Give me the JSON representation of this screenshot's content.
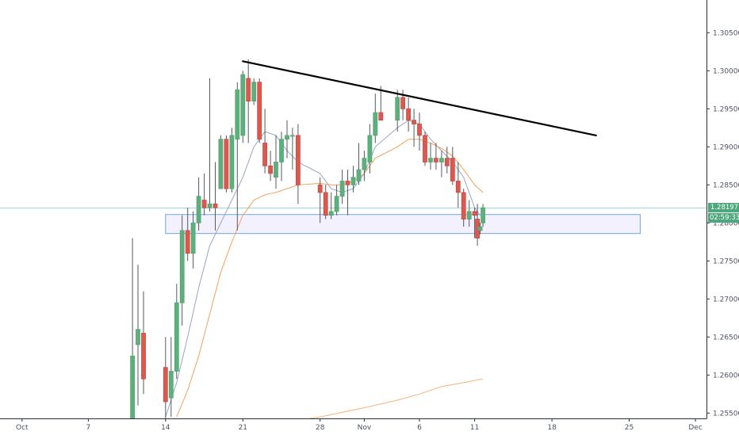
{
  "colors": {
    "up": "#53a773",
    "up_body": "#5fae7d",
    "down": "#d0473f",
    "down_body": "#d85a50",
    "wick": "#555a5f",
    "ma_fast": "#9aa4c4",
    "ma_slow": "#f1a15f",
    "ma_long": "#f6b27a",
    "zone_fill": "#f3f1fd",
    "zone_border": "#72a6dd",
    "price_line": "#9fd6c6",
    "badge_bg": "#4da77c",
    "trendline": "#000000",
    "axis_text": "#4c525e",
    "axis_line": "#2a2e39"
  },
  "price_badge": {
    "value": "1.28197",
    "countdown": "02:59:33"
  },
  "chart_data": {
    "type": "candlestick",
    "title": "",
    "xlabel": "",
    "ylabel": "",
    "x_axis": {
      "type": "date",
      "range": [
        "Sep 29",
        "Dec 2"
      ]
    },
    "y_axis": {
      "position": "right",
      "ylim": [
        1.2543,
        1.3093
      ]
    },
    "x_ticks": [
      {
        "label": "Oct",
        "date": "Oct 1"
      },
      {
        "label": "7",
        "date": "Oct 7"
      },
      {
        "label": "14",
        "date": "Oct 14"
      },
      {
        "label": "21",
        "date": "Oct 21"
      },
      {
        "label": "28",
        "date": "Oct 28"
      },
      {
        "label": "Nov",
        "date": "Nov 1"
      },
      {
        "label": "6",
        "date": "Nov 6"
      },
      {
        "label": "11",
        "date": "Nov 11"
      },
      {
        "label": "18",
        "date": "Nov 18"
      },
      {
        "label": "25",
        "date": "Nov 25"
      },
      {
        "label": "Dec",
        "date": "Dec 1"
      }
    ],
    "y_ticks": [
      "1.30500",
      "1.30000",
      "1.29500",
      "1.29000",
      "1.28500",
      "1.28000",
      "1.27500",
      "1.27000",
      "1.26500",
      "1.26000",
      "1.25500"
    ],
    "grid": false,
    "current_price": 1.28197,
    "candles": [
      {
        "date": "Oct 11 00:00",
        "open": 1.2515,
        "high": 1.278,
        "low": 1.25,
        "close": 1.2625
      },
      {
        "date": "Oct 11 12:00",
        "open": 1.264,
        "high": 1.2745,
        "low": 1.256,
        "close": 1.266
      },
      {
        "date": "Oct 12 00:00",
        "open": 1.2655,
        "high": 1.271,
        "low": 1.2575,
        "close": 1.2595
      },
      {
        "date": "Oct 14 00:00",
        "open": 1.261,
        "high": 1.265,
        "low": 1.2535,
        "close": 1.2565
      },
      {
        "date": "Oct 14 12:00",
        "open": 1.257,
        "high": 1.265,
        "low": 1.2545,
        "close": 1.2605
      },
      {
        "date": "Oct 15 00:00",
        "open": 1.2605,
        "high": 1.272,
        "low": 1.2595,
        "close": 1.2695
      },
      {
        "date": "Oct 15 12:00",
        "open": 1.2695,
        "high": 1.281,
        "low": 1.2665,
        "close": 1.279
      },
      {
        "date": "Oct 16 00:00",
        "open": 1.279,
        "high": 1.282,
        "low": 1.275,
        "close": 1.276
      },
      {
        "date": "Oct 16 12:00",
        "open": 1.276,
        "high": 1.2815,
        "low": 1.274,
        "close": 1.28
      },
      {
        "date": "Oct 17 00:00",
        "open": 1.28,
        "high": 1.286,
        "low": 1.279,
        "close": 1.2835
      },
      {
        "date": "Oct 17 12:00",
        "open": 1.283,
        "high": 1.2865,
        "low": 1.281,
        "close": 1.282
      },
      {
        "date": "Oct 18 00:00",
        "open": 1.282,
        "high": 1.299,
        "low": 1.2815,
        "close": 1.2825
      },
      {
        "date": "Oct 18 12:00",
        "open": 1.2825,
        "high": 1.288,
        "low": 1.279,
        "close": 1.282
      },
      {
        "date": "Oct 19 00:00",
        "open": 1.2845,
        "high": 1.2915,
        "low": 1.2845,
        "close": 1.291
      },
      {
        "date": "Oct 19 12:00",
        "open": 1.291,
        "high": 1.2915,
        "low": 1.284,
        "close": 1.2845
      },
      {
        "date": "Oct 20 00:00",
        "open": 1.2845,
        "high": 1.2925,
        "low": 1.284,
        "close": 1.2915
      },
      {
        "date": "Oct 20 12:00",
        "open": 1.291,
        "high": 1.2985,
        "low": 1.279,
        "close": 1.2975
      },
      {
        "date": "Oct 21 00:00",
        "open": 1.2915,
        "high": 1.3,
        "low": 1.2905,
        "close": 1.2995
      },
      {
        "date": "Oct 21 12:00",
        "open": 1.299,
        "high": 1.3015,
        "low": 1.2905,
        "close": 1.296
      },
      {
        "date": "Oct 22 00:00",
        "open": 1.296,
        "high": 1.299,
        "low": 1.2955,
        "close": 1.2985
      },
      {
        "date": "Oct 22 12:00",
        "open": 1.2985,
        "high": 1.299,
        "low": 1.2905,
        "close": 1.291
      },
      {
        "date": "Oct 23 00:00",
        "open": 1.2905,
        "high": 1.295,
        "low": 1.2865,
        "close": 1.2875
      },
      {
        "date": "Oct 23 12:00",
        "open": 1.2875,
        "high": 1.2895,
        "low": 1.2855,
        "close": 1.2865
      },
      {
        "date": "Oct 24 00:00",
        "open": 1.286,
        "high": 1.2915,
        "low": 1.2845,
        "close": 1.288
      },
      {
        "date": "Oct 24 12:00",
        "open": 1.288,
        "high": 1.292,
        "low": 1.2855,
        "close": 1.291
      },
      {
        "date": "Oct 25 00:00",
        "open": 1.291,
        "high": 1.2935,
        "low": 1.2885,
        "close": 1.2915
      },
      {
        "date": "Oct 25 12:00",
        "open": 1.2915,
        "high": 1.2925,
        "low": 1.287,
        "close": 1.2915
      },
      {
        "date": "Oct 26 00:00",
        "open": 1.2915,
        "high": 1.293,
        "low": 1.2825,
        "close": 1.285
      },
      {
        "date": "Oct 28 00:00",
        "open": 1.285,
        "high": 1.286,
        "low": 1.28,
        "close": 1.284
      },
      {
        "date": "Oct 28 12:00",
        "open": 1.284,
        "high": 1.285,
        "low": 1.2805,
        "close": 1.281
      },
      {
        "date": "Oct 29 00:00",
        "open": 1.281,
        "high": 1.284,
        "low": 1.2805,
        "close": 1.2815
      },
      {
        "date": "Oct 29 12:00",
        "open": 1.2815,
        "high": 1.285,
        "low": 1.281,
        "close": 1.2835
      },
      {
        "date": "Oct 30 00:00",
        "open": 1.2835,
        "high": 1.287,
        "low": 1.2825,
        "close": 1.2855
      },
      {
        "date": "Oct 30 12:00",
        "open": 1.2855,
        "high": 1.287,
        "low": 1.281,
        "close": 1.285
      },
      {
        "date": "Oct 31 00:00",
        "open": 1.285,
        "high": 1.2875,
        "low": 1.284,
        "close": 1.286
      },
      {
        "date": "Oct 31 12:00",
        "open": 1.2855,
        "high": 1.2905,
        "low": 1.285,
        "close": 1.287
      },
      {
        "date": "Nov 1 00:00",
        "open": 1.287,
        "high": 1.2895,
        "low": 1.2855,
        "close": 1.2885
      },
      {
        "date": "Nov 1 12:00",
        "open": 1.288,
        "high": 1.293,
        "low": 1.2865,
        "close": 1.2915
      },
      {
        "date": "Nov 2 00:00",
        "open": 1.2915,
        "high": 1.297,
        "low": 1.2905,
        "close": 1.2945
      },
      {
        "date": "Nov 2 12:00",
        "open": 1.2945,
        "high": 1.298,
        "low": 1.2935,
        "close": 1.2935
      },
      {
        "date": "Nov 4 00:00",
        "open": 1.2935,
        "high": 1.2975,
        "low": 1.292,
        "close": 1.2965
      },
      {
        "date": "Nov 4 12:00",
        "open": 1.2965,
        "high": 1.2975,
        "low": 1.2935,
        "close": 1.295
      },
      {
        "date": "Nov 5 00:00",
        "open": 1.295,
        "high": 1.2965,
        "low": 1.292,
        "close": 1.2935
      },
      {
        "date": "Nov 5 12:00",
        "open": 1.2935,
        "high": 1.295,
        "low": 1.29,
        "close": 1.293
      },
      {
        "date": "Nov 6 00:00",
        "open": 1.293,
        "high": 1.2945,
        "low": 1.2895,
        "close": 1.2915
      },
      {
        "date": "Nov 6 12:00",
        "open": 1.2915,
        "high": 1.292,
        "low": 1.2875,
        "close": 1.288
      },
      {
        "date": "Nov 7 00:00",
        "open": 1.288,
        "high": 1.2905,
        "low": 1.287,
        "close": 1.2885
      },
      {
        "date": "Nov 7 12:00",
        "open": 1.2885,
        "high": 1.2905,
        "low": 1.287,
        "close": 1.288
      },
      {
        "date": "Nov 8 00:00",
        "open": 1.288,
        "high": 1.2895,
        "low": 1.286,
        "close": 1.2885
      },
      {
        "date": "Nov 8 12:00",
        "open": 1.2885,
        "high": 1.29,
        "low": 1.2865,
        "close": 1.2875
      },
      {
        "date": "Nov 9 00:00",
        "open": 1.2885,
        "high": 1.29,
        "low": 1.285,
        "close": 1.2855
      },
      {
        "date": "Nov 9 12:00",
        "open": 1.2855,
        "high": 1.288,
        "low": 1.282,
        "close": 1.284
      },
      {
        "date": "Nov 10 00:00",
        "open": 1.284,
        "high": 1.2845,
        "low": 1.2795,
        "close": 1.2805
      },
      {
        "date": "Nov 10 12:00",
        "open": 1.2805,
        "high": 1.283,
        "low": 1.2795,
        "close": 1.2815
      },
      {
        "date": "Nov 11 00:00",
        "open": 1.2815,
        "high": 1.282,
        "low": 1.278,
        "close": 1.281
      },
      {
        "date": "Nov 11 06:00",
        "open": 1.2805,
        "high": 1.2825,
        "low": 1.277,
        "close": 1.278
      },
      {
        "date": "Nov 11 12:00",
        "open": 1.279,
        "high": 1.28,
        "low": 1.2785,
        "close": 1.2795
      },
      {
        "date": "Nov 11 18:00",
        "open": 1.28,
        "high": 1.2825,
        "low": 1.2795,
        "close": 1.282
      }
    ],
    "moving_averages": [
      {
        "id": "fast",
        "color": "#9aa4c4",
        "points": [
          [
            "Oct 14 00:00",
            1.2545
          ],
          [
            "Oct 15 00:00",
            1.259
          ],
          [
            "Oct 16 00:00",
            1.265
          ],
          [
            "Oct 17 00:00",
            1.2715
          ],
          [
            "Oct 18 00:00",
            1.277
          ],
          [
            "Oct 19 00:00",
            1.28
          ],
          [
            "Oct 20 00:00",
            1.283
          ],
          [
            "Oct 21 00:00",
            1.286
          ],
          [
            "Oct 22 00:00",
            1.29
          ],
          [
            "Oct 23 00:00",
            1.292
          ],
          [
            "Oct 24 00:00",
            1.2915
          ],
          [
            "Oct 25 00:00",
            1.2895
          ],
          [
            "Oct 26 00:00",
            1.288
          ],
          [
            "Oct 28 00:00",
            1.2865
          ],
          [
            "Oct 29 00:00",
            1.2845
          ],
          [
            "Oct 30 00:00",
            1.284
          ],
          [
            "Oct 31 00:00",
            1.2845
          ],
          [
            "Nov 1 00:00",
            1.2865
          ],
          [
            "Nov 2 00:00",
            1.29
          ],
          [
            "Nov 4 00:00",
            1.2925
          ],
          [
            "Nov 5 00:00",
            1.2935
          ],
          [
            "Nov 6 00:00",
            1.293
          ],
          [
            "Nov 7 00:00",
            1.291
          ],
          [
            "Nov 8 00:00",
            1.2895
          ],
          [
            "Nov 9 00:00",
            1.288
          ],
          [
            "Nov 10 00:00",
            1.286
          ],
          [
            "Nov 10 12:00",
            1.284
          ],
          [
            "Nov 11 00:00",
            1.282
          ],
          [
            "Nov 11 12:00",
            1.281
          ]
        ]
      },
      {
        "id": "slow",
        "color": "#f1a15f",
        "points": [
          [
            "Oct 15 00:00",
            1.2545
          ],
          [
            "Oct 16 00:00",
            1.258
          ],
          [
            "Oct 17 00:00",
            1.2625
          ],
          [
            "Oct 18 00:00",
            1.268
          ],
          [
            "Oct 19 00:00",
            1.2735
          ],
          [
            "Oct 20 00:00",
            1.2775
          ],
          [
            "Oct 21 00:00",
            1.281
          ],
          [
            "Oct 22 00:00",
            1.283
          ],
          [
            "Oct 23 00:00",
            1.2837
          ],
          [
            "Oct 24 00:00",
            1.284
          ],
          [
            "Oct 25 00:00",
            1.2845
          ],
          [
            "Oct 26 00:00",
            1.285
          ],
          [
            "Oct 28 00:00",
            1.2852
          ],
          [
            "Oct 29 00:00",
            1.285
          ],
          [
            "Oct 30 00:00",
            1.285
          ],
          [
            "Oct 31 00:00",
            1.2855
          ],
          [
            "Nov 1 00:00",
            1.2865
          ],
          [
            "Nov 2 00:00",
            1.2885
          ],
          [
            "Nov 4 00:00",
            1.29
          ],
          [
            "Nov 5 00:00",
            1.291
          ],
          [
            "Nov 6 00:00",
            1.291
          ],
          [
            "Nov 7 00:00",
            1.2905
          ],
          [
            "Nov 8 00:00",
            1.2898
          ],
          [
            "Nov 9 00:00",
            1.2888
          ],
          [
            "Nov 10 00:00",
            1.287
          ],
          [
            "Nov 11 00:00",
            1.285
          ],
          [
            "Nov 11 18:00",
            1.284
          ]
        ]
      },
      {
        "id": "long",
        "color": "#f6b27a",
        "points": [
          [
            "Oct 25 00:00",
            1.2538
          ],
          [
            "Oct 28 00:00",
            1.2545
          ],
          [
            "Nov 1 00:00",
            1.2557
          ],
          [
            "Nov 4 00:00",
            1.2567
          ],
          [
            "Nov 6 00:00",
            1.2575
          ],
          [
            "Nov 8 00:00",
            1.2585
          ],
          [
            "Nov 10 00:00",
            1.259
          ],
          [
            "Nov 11 18:00",
            1.2595
          ]
        ]
      }
    ],
    "trendline": {
      "start": [
        "Oct 21 00:00",
        1.30125
      ],
      "end": [
        "Nov 22 00:00",
        1.2915
      ]
    },
    "zone": {
      "start": "Oct 14 00:00",
      "end": "Nov 26 00:00",
      "top": 1.2811,
      "bottom": 1.2786
    }
  }
}
